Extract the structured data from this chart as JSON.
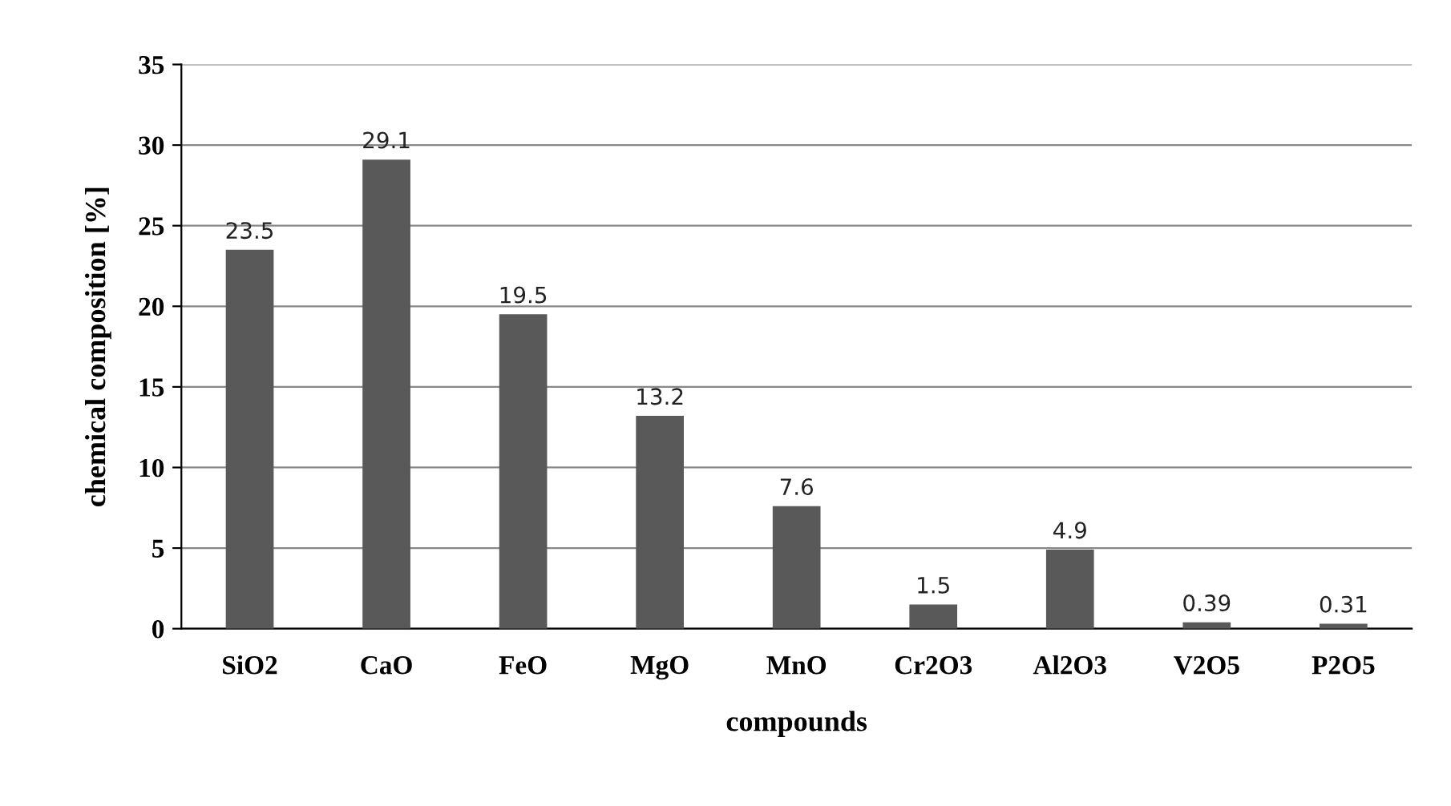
{
  "chart_data": {
    "type": "bar",
    "xlabel": "compounds",
    "ylabel": "chemical composition [%]",
    "categories": [
      "SiO2",
      "CaO",
      "FeO",
      "MgO",
      "MnO",
      "Cr2O3",
      "Al2O3",
      "V2O5",
      "P2O5"
    ],
    "values": [
      23.5,
      29.1,
      19.5,
      13.2,
      7.6,
      1.5,
      4.9,
      0.39,
      0.31
    ],
    "color": "#595959",
    "ylim": [
      0,
      35
    ],
    "yticks": [
      0,
      5,
      10,
      15,
      20,
      25,
      30,
      35
    ],
    "grid": "y",
    "data_labels": true
  }
}
